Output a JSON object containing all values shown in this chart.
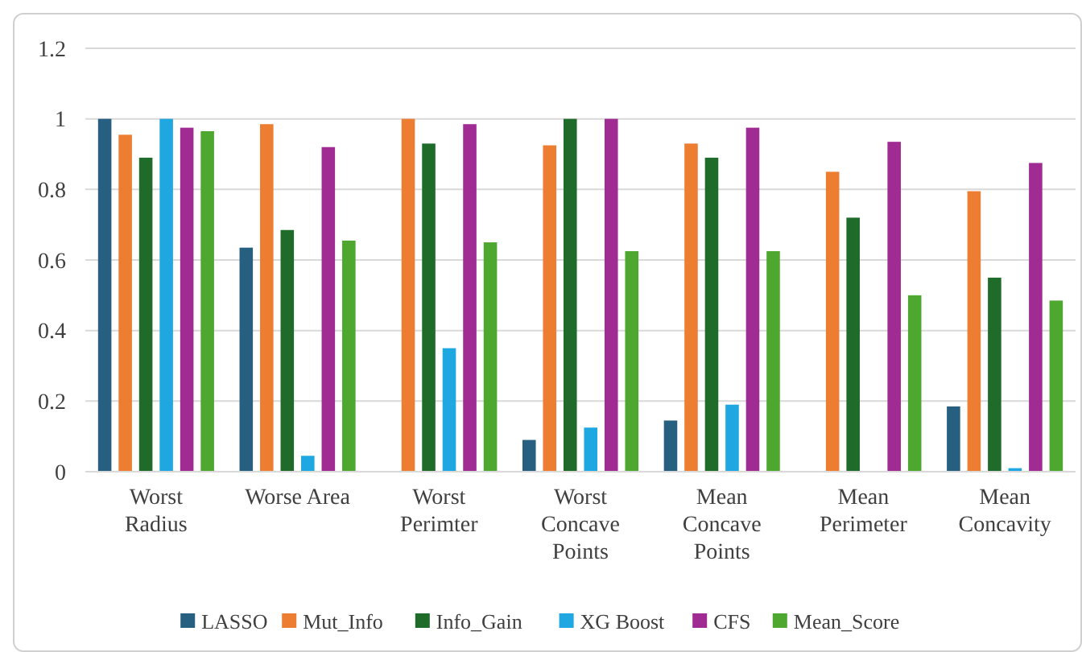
{
  "chart_data": {
    "type": "bar",
    "categories": [
      "Worst Radius",
      "Worse Area",
      "Worst Perimter",
      "Worst Concave Points",
      "Mean Concave Points",
      "Mean Perimeter",
      "Mean Concavity"
    ],
    "series": [
      {
        "name": "LASSO",
        "color": "#265f7f",
        "values": [
          1,
          0.635,
          0,
          0.09,
          0.145,
          0,
          0.185
        ]
      },
      {
        "name": "Mut_Info",
        "color": "#ed7d31",
        "values": [
          0.955,
          0.985,
          1,
          0.925,
          0.93,
          0.85,
          0.795
        ]
      },
      {
        "name": "Info_Gain",
        "color": "#1f6b2a",
        "values": [
          0.89,
          0.685,
          0.93,
          1,
          0.89,
          0.72,
          0.55
        ]
      },
      {
        "name": "XG Boost",
        "color": "#1ea7e1",
        "values": [
          1,
          0.045,
          0.35,
          0.125,
          0.19,
          0,
          0.01
        ]
      },
      {
        "name": "CFS",
        "color": "#a02b93",
        "values": [
          0.975,
          0.92,
          0.985,
          1,
          0.975,
          0.935,
          0.875
        ]
      },
      {
        "name": "Mean_Score",
        "color": "#4ea72e",
        "values": [
          0.965,
          0.655,
          0.65,
          0.625,
          0.625,
          0.5,
          0.485
        ]
      }
    ],
    "ylim": [
      0,
      1.2
    ],
    "yticks": [
      0,
      {
        "value": 0.2,
        "label": "0.2"
      },
      {
        "value": 0.4,
        "label": "0.4"
      },
      {
        "value": 0.6,
        "label": "0.6"
      },
      {
        "value": 0.8,
        "label": "0.8"
      },
      1,
      {
        "value": 1.2,
        "label": "1.2"
      }
    ],
    "grid": "y",
    "legend": "bottom"
  }
}
